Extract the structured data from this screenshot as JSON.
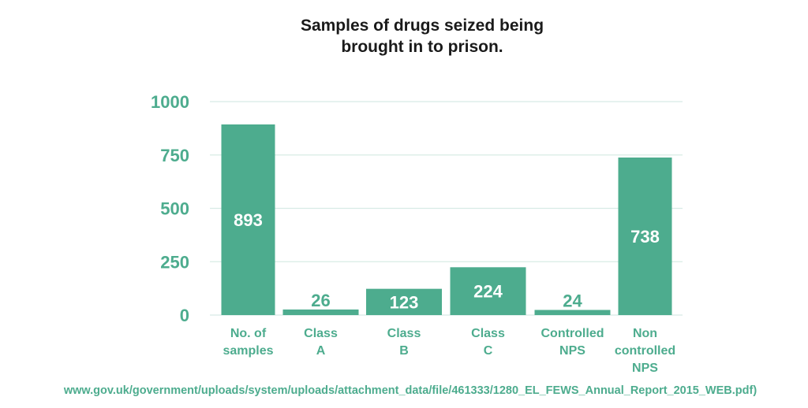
{
  "chart_data": {
    "type": "bar",
    "title_lines": [
      "Samples of drugs seized being",
      "brought in to prison."
    ],
    "categories": [
      [
        "No. of",
        "samples"
      ],
      [
        "Class",
        "A"
      ],
      [
        "Class",
        "B"
      ],
      [
        "Class",
        "C"
      ],
      [
        "Controlled",
        "NPS"
      ],
      [
        "Non",
        "controlled",
        "NPS"
      ]
    ],
    "values": [
      893,
      26,
      123,
      224,
      24,
      738
    ],
    "data_labels": [
      "893",
      "26",
      "123",
      "224",
      "24",
      "738"
    ],
    "ylim": [
      0,
      1000
    ],
    "yticks": [
      0,
      250,
      500,
      750,
      1000
    ],
    "ytick_labels": [
      "0",
      "250",
      "500",
      "750",
      "1000"
    ],
    "grid": true,
    "xlabel": "",
    "ylabel": "",
    "colors": {
      "bar": "#4dac8e",
      "axis_text": "#4dac8e",
      "value_label": "#ffffff",
      "grid": "#d8ebe5",
      "title": "#1a1a1a"
    }
  },
  "source_text": "www.gov.uk/government/uploads/system/uploads/attachment_data/file/461333/1280_EL_FEWS_Annual_Report_2015_WEB.pdf)"
}
